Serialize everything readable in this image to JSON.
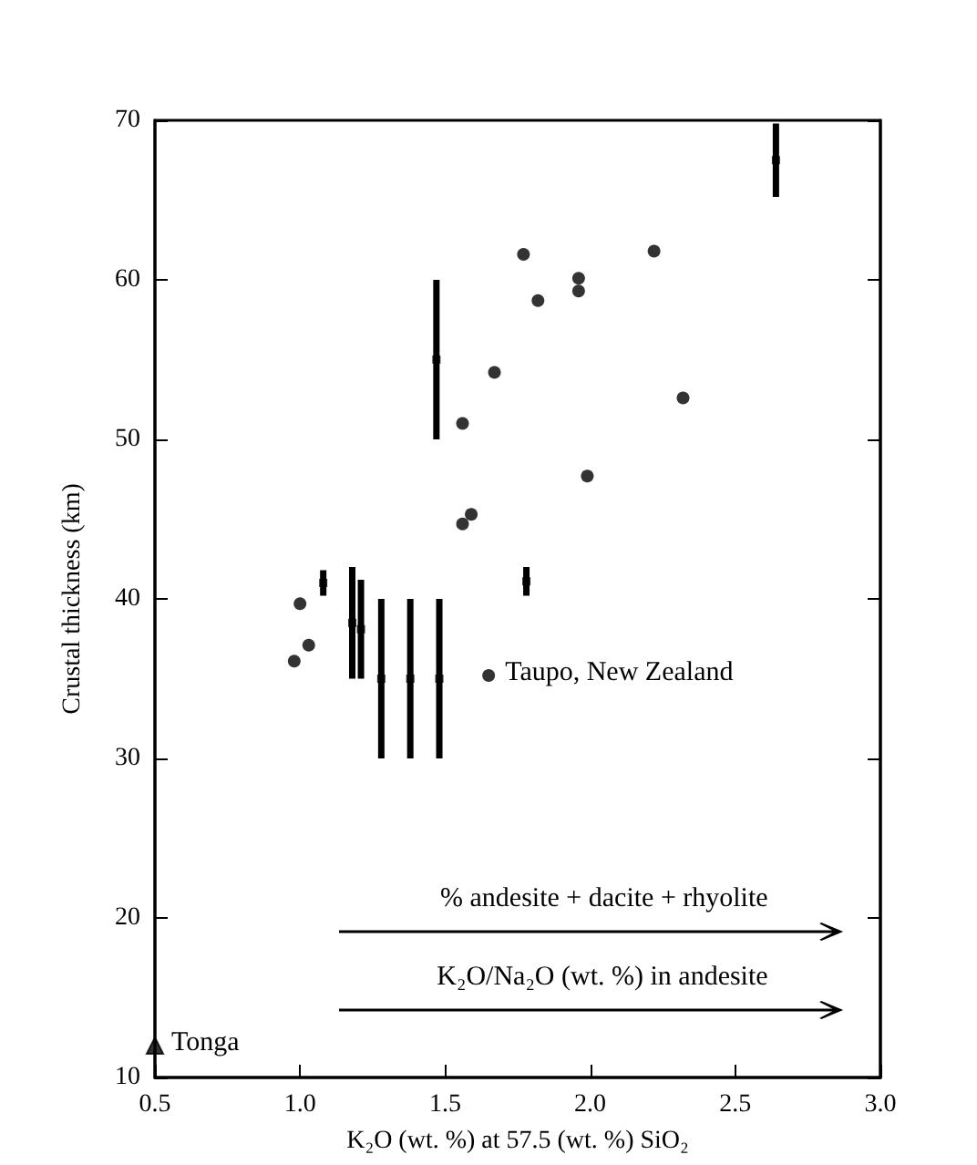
{
  "chart_data": {
    "type": "scatter",
    "xlabel": "K₂O (wt. %) at 57.5 (wt. %) SiO₂",
    "ylabel": "Crustal thickness (km)",
    "xlim": [
      0.5,
      3.0
    ],
    "xticks": [
      {
        "value": 0.5,
        "label": "0.5"
      },
      {
        "value": 1,
        "label": "1.0"
      },
      {
        "value": 1.5,
        "label": "1.5"
      },
      {
        "value": 2,
        "label": "2.0"
      },
      {
        "value": 2.5,
        "label": "2.5"
      },
      {
        "value": 3,
        "label": "3.0"
      }
    ],
    "ylim": [
      10,
      70
    ],
    "yticks": [
      10,
      20,
      30,
      40,
      50,
      60,
      70
    ],
    "grid": false,
    "marker": "circle",
    "series": [
      {
        "color": "#000000",
        "x": [
          1.77,
          2.22,
          1.96,
          1.96,
          1.82,
          1.67,
          2.32,
          1.56,
          1.99,
          1.59,
          1.56,
          1.0,
          1.03,
          0.98
        ],
        "values": [
          61.6,
          61.8,
          60.1,
          59.3,
          58.7,
          54.2,
          52.6,
          51.0,
          47.7,
          45.3,
          44.7,
          39.7,
          37.1,
          36.1
        ]
      },
      {
        "color": "#000000",
        "x": [
          1.65
        ],
        "values": [
          35.2
        ]
      },
      {
        "color": "#000000",
        "marker": "triangle",
        "x": [
          0.5
        ],
        "values": [
          12
        ]
      },
      {
        "color": "#000000",
        "marker": "square",
        "x": [
          2.64,
          1.47,
          1.78,
          1.08,
          1.18,
          1.21,
          1.28,
          1.38,
          1.48
        ],
        "values": [
          67.5,
          55,
          41.1,
          41,
          38.5,
          38.1,
          35,
          35,
          35
        ],
        "errors": [
          [
            65.2,
            69.8
          ],
          [
            50,
            60
          ],
          [
            40.2,
            42
          ],
          [
            40.2,
            41.8
          ],
          [
            35,
            42
          ],
          [
            35,
            41.2
          ],
          [
            30,
            40
          ],
          [
            30,
            40
          ],
          [
            30,
            40
          ]
        ]
      }
    ],
    "annotations": [
      {
        "text": "Taupo, New Zealand",
        "x": 1.65,
        "y": 35.2
      },
      {
        "text": "Tonga",
        "x": 0.5,
        "y": 12
      },
      "% andesite + dacite + rhyolite",
      "K₂O/Na₂O (wt. %) in andesite"
    ]
  }
}
